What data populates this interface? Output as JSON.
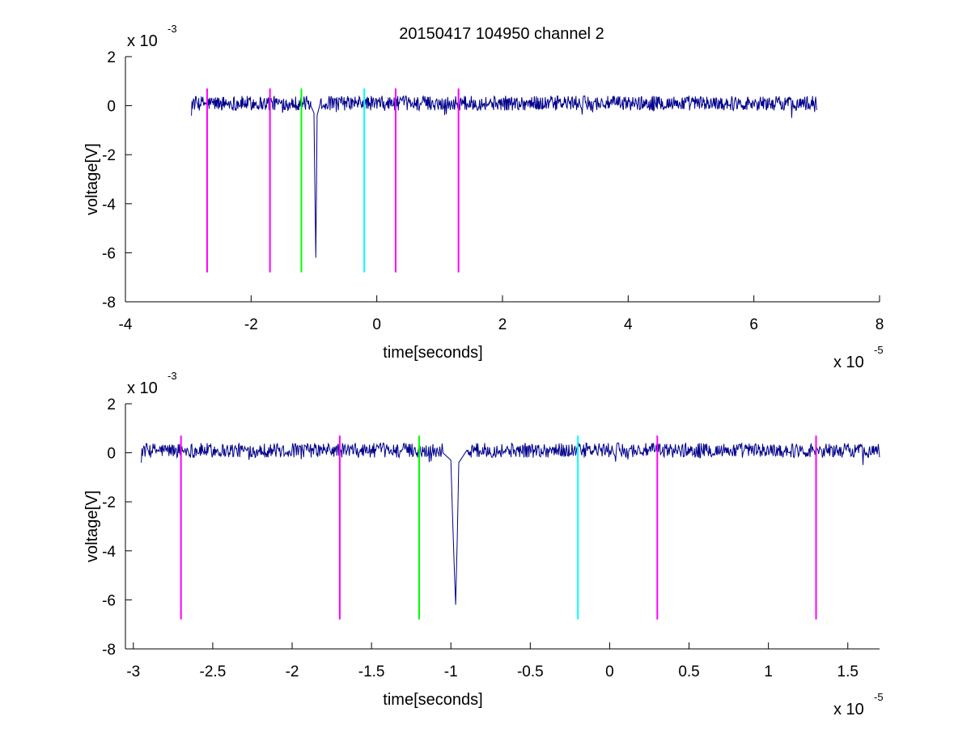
{
  "figure_title": "20150417 104950 channel 2",
  "chart_data": [
    {
      "type": "line",
      "title": "20150417 104950 channel 2",
      "xlabel": "time[seconds]",
      "ylabel": "voltage[V]",
      "x_multiplier": "x 10",
      "x_exponent": "-5",
      "y_multiplier": "x 10",
      "y_exponent": "-3",
      "xlim": [
        -4e-05,
        8e-05
      ],
      "ylim": [
        -0.008,
        0.002
      ],
      "xticks": [
        -4e-05,
        -2e-05,
        0,
        2e-05,
        4e-05,
        6e-05,
        8e-05
      ],
      "xtick_labels": [
        "-4",
        "-2",
        "0",
        "2",
        "4",
        "6",
        "8"
      ],
      "yticks": [
        -0.008,
        -0.006,
        -0.004,
        -0.002,
        0,
        0.002
      ],
      "ytick_labels": [
        "-8",
        "-6",
        "-4",
        "-2",
        "0",
        "2"
      ],
      "grid": false,
      "signal": {
        "color": "#00008b",
        "x_start": -2.95e-05,
        "x_end": 7e-05,
        "baseline": 0.0001,
        "pulse": [
          {
            "x": -1.05e-05,
            "y": 0.0
          },
          {
            "x": -1e-05,
            "y": -0.0003
          },
          {
            "x": -9.9e-06,
            "y": -0.0025
          },
          {
            "x": -9.8e-06,
            "y": -0.0045
          },
          {
            "x": -9.7e-06,
            "y": -0.0062
          },
          {
            "x": -9.6e-06,
            "y": -0.0035
          },
          {
            "x": -9.5e-06,
            "y": -0.0004
          },
          {
            "x": -9e-06,
            "y": 0.0001
          }
        ]
      },
      "markers": [
        {
          "x": -2.7e-05,
          "color": "#ff00ff",
          "y_top": 0.0007,
          "y_bottom": -0.0068
        },
        {
          "x": -1.7e-05,
          "color": "#ff00ff",
          "y_top": 0.0007,
          "y_bottom": -0.0068
        },
        {
          "x": -1.2e-05,
          "color": "#00ff00",
          "y_top": 0.0007,
          "y_bottom": -0.0068
        },
        {
          "x": -2e-06,
          "color": "#00ffff",
          "y_top": 0.0007,
          "y_bottom": -0.0068
        },
        {
          "x": 3e-06,
          "color": "#ff00ff",
          "y_top": 0.0007,
          "y_bottom": -0.0068
        },
        {
          "x": 1.3e-05,
          "color": "#ff00ff",
          "y_top": 0.0007,
          "y_bottom": -0.0068
        }
      ]
    },
    {
      "type": "line",
      "title": "",
      "xlabel": "time[seconds]",
      "ylabel": "voltage[V]",
      "x_multiplier": "x 10",
      "x_exponent": "-5",
      "y_multiplier": "x 10",
      "y_exponent": "-3",
      "xlim": [
        -3.05e-05,
        1.7e-05
      ],
      "ylim": [
        -0.008,
        0.002
      ],
      "xticks": [
        -3e-05,
        -2.5e-05,
        -2e-05,
        -1.5e-05,
        -1e-05,
        -5e-06,
        0,
        5e-06,
        1e-05,
        1.5e-05
      ],
      "xtick_labels": [
        "-3",
        "-2.5",
        "-2",
        "-1.5",
        "-1",
        "-0.5",
        "0",
        "0.5",
        "1",
        "1.5"
      ],
      "yticks": [
        -0.008,
        -0.006,
        -0.004,
        -0.002,
        0,
        0.002
      ],
      "ytick_labels": [
        "-8",
        "-6",
        "-4",
        "-2",
        "0",
        "2"
      ],
      "grid": false,
      "signal": {
        "color": "#00008b",
        "x_start": -2.95e-05,
        "x_end": 1.7e-05,
        "baseline": 0.0001,
        "pulse": [
          {
            "x": -1.05e-05,
            "y": 0.0
          },
          {
            "x": -1e-05,
            "y": -0.0003
          },
          {
            "x": -9.9e-06,
            "y": -0.0025
          },
          {
            "x": -9.8e-06,
            "y": -0.0045
          },
          {
            "x": -9.7e-06,
            "y": -0.0062
          },
          {
            "x": -9.6e-06,
            "y": -0.0035
          },
          {
            "x": -9.5e-06,
            "y": -0.0004
          },
          {
            "x": -9e-06,
            "y": 0.0001
          }
        ]
      },
      "markers": [
        {
          "x": -2.7e-05,
          "color": "#ff00ff",
          "y_top": 0.0007,
          "y_bottom": -0.0068
        },
        {
          "x": -1.7e-05,
          "color": "#ff00ff",
          "y_top": 0.0007,
          "y_bottom": -0.0068
        },
        {
          "x": -1.2e-05,
          "color": "#00ff00",
          "y_top": 0.0007,
          "y_bottom": -0.0068
        },
        {
          "x": -2e-06,
          "color": "#00ffff",
          "y_top": 0.0007,
          "y_bottom": -0.0068
        },
        {
          "x": 3e-06,
          "color": "#ff00ff",
          "y_top": 0.0007,
          "y_bottom": -0.0068
        },
        {
          "x": 1.3e-05,
          "color": "#ff00ff",
          "y_top": 0.0007,
          "y_bottom": -0.0068
        }
      ]
    }
  ]
}
